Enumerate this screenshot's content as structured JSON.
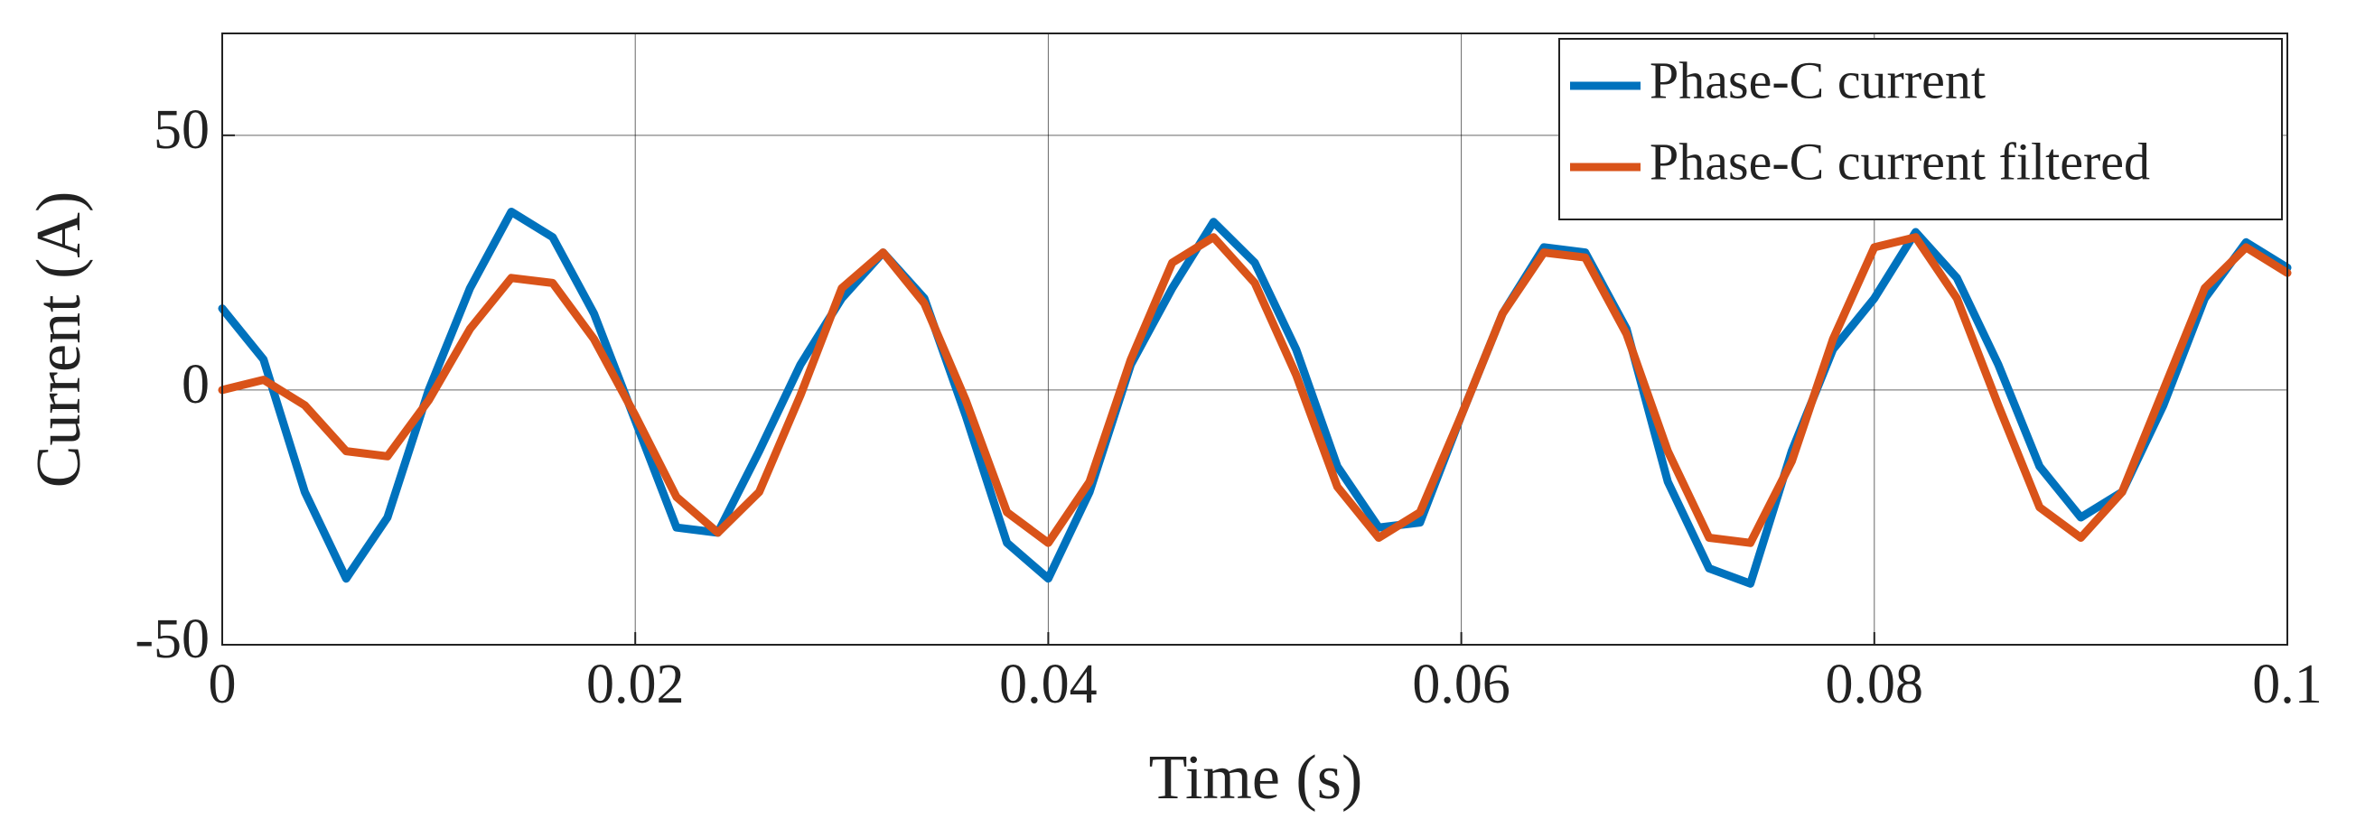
{
  "chart_data": {
    "type": "line",
    "xlabel": "Time (s)",
    "ylabel": "Current (A)",
    "x": [
      0,
      0.002,
      0.004,
      0.006,
      0.008,
      0.01,
      0.012,
      0.014,
      0.016,
      0.018,
      0.02,
      0.022,
      0.024,
      0.026,
      0.028,
      0.03,
      0.032,
      0.034,
      0.036,
      0.038,
      0.04,
      0.042,
      0.044,
      0.046,
      0.048,
      0.05,
      0.052,
      0.054,
      0.056,
      0.058,
      0.06,
      0.062,
      0.064,
      0.066,
      0.068,
      0.07,
      0.072,
      0.074,
      0.076,
      0.078,
      0.08,
      0.082,
      0.084,
      0.086,
      0.088,
      0.09,
      0.092,
      0.094,
      0.096,
      0.098,
      0.1
    ],
    "series": [
      {
        "name": "Phase-C current",
        "color": "#0072bd",
        "values": [
          16,
          6,
          -20,
          -37,
          -25,
          0,
          20,
          35,
          30,
          15,
          -6,
          -27,
          -28,
          -12,
          5,
          18,
          27,
          18,
          -5,
          -30,
          -37,
          -20,
          5,
          20,
          33,
          25,
          8,
          -15,
          -27,
          -26,
          -5,
          15,
          28,
          27,
          12,
          -18,
          -35,
          -38,
          -12,
          8,
          18,
          31,
          22,
          5,
          -15,
          -25,
          -20,
          -3,
          18,
          29,
          24
        ]
      },
      {
        "name": "Phase-C current filtered",
        "color": "#d95319",
        "values": [
          0,
          2,
          -3,
          -12,
          -13,
          -2,
          12,
          22,
          21,
          10,
          -5,
          -21,
          -28,
          -20,
          -1,
          20,
          27,
          17,
          -2,
          -24,
          -30,
          -18,
          6,
          25,
          30,
          21,
          3,
          -19,
          -29,
          -24,
          -5,
          15,
          27,
          26,
          11,
          -12,
          -29,
          -30,
          -14,
          10,
          28,
          30,
          18,
          -3,
          -23,
          -29,
          -20,
          0,
          20,
          28,
          23
        ]
      }
    ],
    "xlim": [
      0,
      0.1
    ],
    "xticks": [
      0,
      0.02,
      0.04,
      0.06,
      0.08,
      0.1
    ],
    "ylim": [
      -50,
      70
    ],
    "yticks": [
      -50,
      0,
      50
    ],
    "grid": true,
    "legend": "upper right"
  }
}
